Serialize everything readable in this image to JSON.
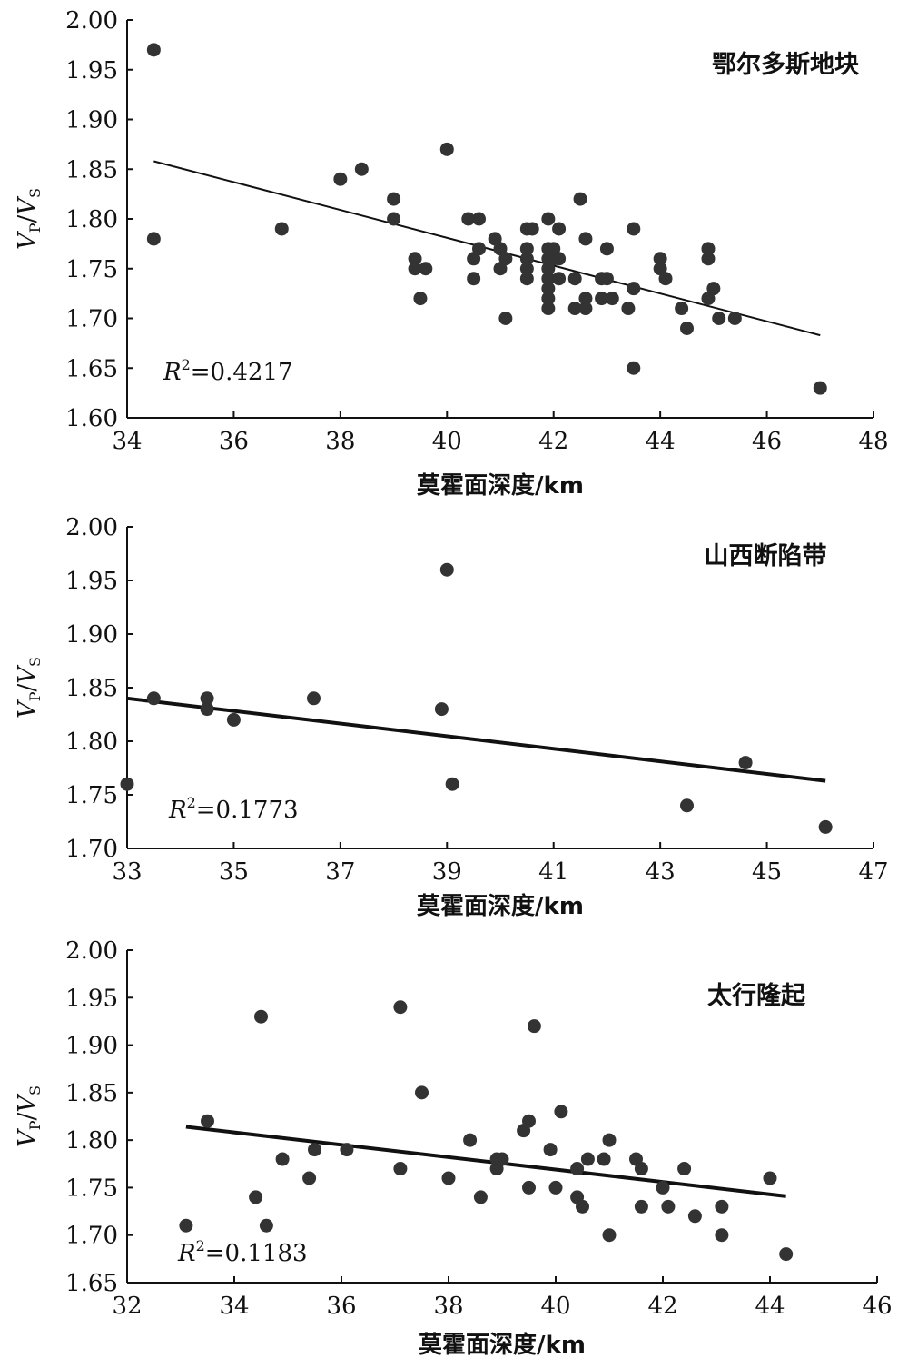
{
  "chart_data": [
    {
      "type": "scatter",
      "title": "鄂尔多斯地块",
      "xlabel": "莫霍面深度/km",
      "ylabel": "VP/VS",
      "ylabel_parts": {
        "main": "V",
        "sub1": "P",
        "slash": "/",
        "main2": "V",
        "sub2": "S"
      },
      "xlim": [
        34,
        48
      ],
      "ylim": [
        1.6,
        2.0
      ],
      "xticks": [
        "34",
        "36",
        "38",
        "40",
        "42",
        "44",
        "46",
        "48"
      ],
      "yticks": [
        "1.60",
        "1.65",
        "1.70",
        "1.75",
        "1.80",
        "1.85",
        "1.90",
        "1.95",
        "2.00"
      ],
      "annotation": {
        "r_letter": "R",
        "power": "2",
        "value": "=0.4217"
      },
      "trendline": {
        "x": [
          34.5,
          47.0
        ],
        "y": [
          1.858,
          1.683
        ]
      },
      "points": [
        [
          34.5,
          1.97
        ],
        [
          34.5,
          1.78
        ],
        [
          36.9,
          1.79
        ],
        [
          38.0,
          1.84
        ],
        [
          38.4,
          1.85
        ],
        [
          39.0,
          1.82
        ],
        [
          39.0,
          1.8
        ],
        [
          39.4,
          1.76
        ],
        [
          39.4,
          1.75
        ],
        [
          39.5,
          1.72
        ],
        [
          39.6,
          1.75
        ],
        [
          40.0,
          1.87
        ],
        [
          40.4,
          1.8
        ],
        [
          40.5,
          1.76
        ],
        [
          40.5,
          1.74
        ],
        [
          40.6,
          1.8
        ],
        [
          40.6,
          1.77
        ],
        [
          40.9,
          1.78
        ],
        [
          41.0,
          1.77
        ],
        [
          41.0,
          1.75
        ],
        [
          41.1,
          1.76
        ],
        [
          41.1,
          1.7
        ],
        [
          41.5,
          1.79
        ],
        [
          41.5,
          1.77
        ],
        [
          41.5,
          1.76
        ],
        [
          41.5,
          1.75
        ],
        [
          41.5,
          1.74
        ],
        [
          41.6,
          1.79
        ],
        [
          41.9,
          1.8
        ],
        [
          41.9,
          1.77
        ],
        [
          41.9,
          1.76
        ],
        [
          41.9,
          1.75
        ],
        [
          41.9,
          1.74
        ],
        [
          41.9,
          1.73
        ],
        [
          41.9,
          1.72
        ],
        [
          41.9,
          1.71
        ],
        [
          42.0,
          1.77
        ],
        [
          42.0,
          1.76
        ],
        [
          42.1,
          1.79
        ],
        [
          42.1,
          1.76
        ],
        [
          42.1,
          1.74
        ],
        [
          42.4,
          1.74
        ],
        [
          42.4,
          1.71
        ],
        [
          42.5,
          1.82
        ],
        [
          42.6,
          1.78
        ],
        [
          42.6,
          1.72
        ],
        [
          42.6,
          1.71
        ],
        [
          42.9,
          1.74
        ],
        [
          42.9,
          1.72
        ],
        [
          43.0,
          1.77
        ],
        [
          43.0,
          1.74
        ],
        [
          43.1,
          1.72
        ],
        [
          43.4,
          1.71
        ],
        [
          43.5,
          1.79
        ],
        [
          43.5,
          1.73
        ],
        [
          43.5,
          1.65
        ],
        [
          44.0,
          1.76
        ],
        [
          44.0,
          1.75
        ],
        [
          44.1,
          1.74
        ],
        [
          44.4,
          1.71
        ],
        [
          44.5,
          1.69
        ],
        [
          44.9,
          1.77
        ],
        [
          44.9,
          1.76
        ],
        [
          44.9,
          1.72
        ],
        [
          45.0,
          1.73
        ],
        [
          45.1,
          1.7
        ],
        [
          45.4,
          1.7
        ],
        [
          47.0,
          1.63
        ]
      ]
    },
    {
      "type": "scatter",
      "title": "山西断陷带",
      "xlabel": "莫霍面深度/km",
      "ylabel": "VP/VS",
      "ylabel_parts": {
        "main": "V",
        "sub1": "P",
        "slash": "/",
        "main2": "V",
        "sub2": "S"
      },
      "xlim": [
        33,
        47
      ],
      "ylim": [
        1.7,
        2.0
      ],
      "xticks": [
        "33",
        "35",
        "37",
        "39",
        "41",
        "43",
        "45",
        "47"
      ],
      "yticks": [
        "1.70",
        "1.75",
        "1.80",
        "1.85",
        "1.90",
        "1.95",
        "2.00"
      ],
      "annotation": {
        "r_letter": "R",
        "power": "2",
        "value": "=0.1773"
      },
      "trendline": {
        "x": [
          33.0,
          46.1
        ],
        "y": [
          1.84,
          1.763
        ]
      },
      "points": [
        [
          33.0,
          1.76
        ],
        [
          33.5,
          1.84
        ],
        [
          34.5,
          1.84
        ],
        [
          34.5,
          1.83
        ],
        [
          35.0,
          1.82
        ],
        [
          36.5,
          1.84
        ],
        [
          38.9,
          1.83
        ],
        [
          39.0,
          1.96
        ],
        [
          39.1,
          1.76
        ],
        [
          43.5,
          1.74
        ],
        [
          44.6,
          1.78
        ],
        [
          46.1,
          1.72
        ]
      ]
    },
    {
      "type": "scatter",
      "title": "太行隆起",
      "xlabel": "莫霍面深度/km",
      "ylabel": "VP/VS",
      "ylabel_parts": {
        "main": "V",
        "sub1": "P",
        "slash": "/",
        "main2": "V",
        "sub2": "S"
      },
      "xlim": [
        32,
        46
      ],
      "ylim": [
        1.65,
        2.0
      ],
      "xticks": [
        "32",
        "34",
        "36",
        "38",
        "40",
        "42",
        "44",
        "46"
      ],
      "yticks": [
        "1.65",
        "1.70",
        "1.75",
        "1.80",
        "1.85",
        "1.90",
        "1.95",
        "2.00"
      ],
      "annotation": {
        "r_letter": "R",
        "power": "2",
        "value": "=0.1183"
      },
      "trendline": {
        "x": [
          33.1,
          44.3
        ],
        "y": [
          1.814,
          1.741
        ]
      },
      "points": [
        [
          33.1,
          1.71
        ],
        [
          33.5,
          1.82
        ],
        [
          34.4,
          1.74
        ],
        [
          34.5,
          1.93
        ],
        [
          34.6,
          1.71
        ],
        [
          34.9,
          1.78
        ],
        [
          35.4,
          1.76
        ],
        [
          35.5,
          1.79
        ],
        [
          36.1,
          1.79
        ],
        [
          37.1,
          1.94
        ],
        [
          37.1,
          1.77
        ],
        [
          37.5,
          1.85
        ],
        [
          38.0,
          1.76
        ],
        [
          38.4,
          1.8
        ],
        [
          38.6,
          1.74
        ],
        [
          38.9,
          1.78
        ],
        [
          38.9,
          1.77
        ],
        [
          39.0,
          1.78
        ],
        [
          39.4,
          1.81
        ],
        [
          39.5,
          1.82
        ],
        [
          39.5,
          1.75
        ],
        [
          39.6,
          1.92
        ],
        [
          39.9,
          1.79
        ],
        [
          40.0,
          1.75
        ],
        [
          40.1,
          1.83
        ],
        [
          40.4,
          1.77
        ],
        [
          40.4,
          1.74
        ],
        [
          40.5,
          1.73
        ],
        [
          40.6,
          1.78
        ],
        [
          40.9,
          1.78
        ],
        [
          41.0,
          1.8
        ],
        [
          41.0,
          1.7
        ],
        [
          41.5,
          1.78
        ],
        [
          41.6,
          1.77
        ],
        [
          41.6,
          1.73
        ],
        [
          42.0,
          1.75
        ],
        [
          42.1,
          1.73
        ],
        [
          42.4,
          1.77
        ],
        [
          42.6,
          1.72
        ],
        [
          43.1,
          1.73
        ],
        [
          43.1,
          1.7
        ],
        [
          44.0,
          1.76
        ],
        [
          44.3,
          1.68
        ]
      ]
    }
  ]
}
